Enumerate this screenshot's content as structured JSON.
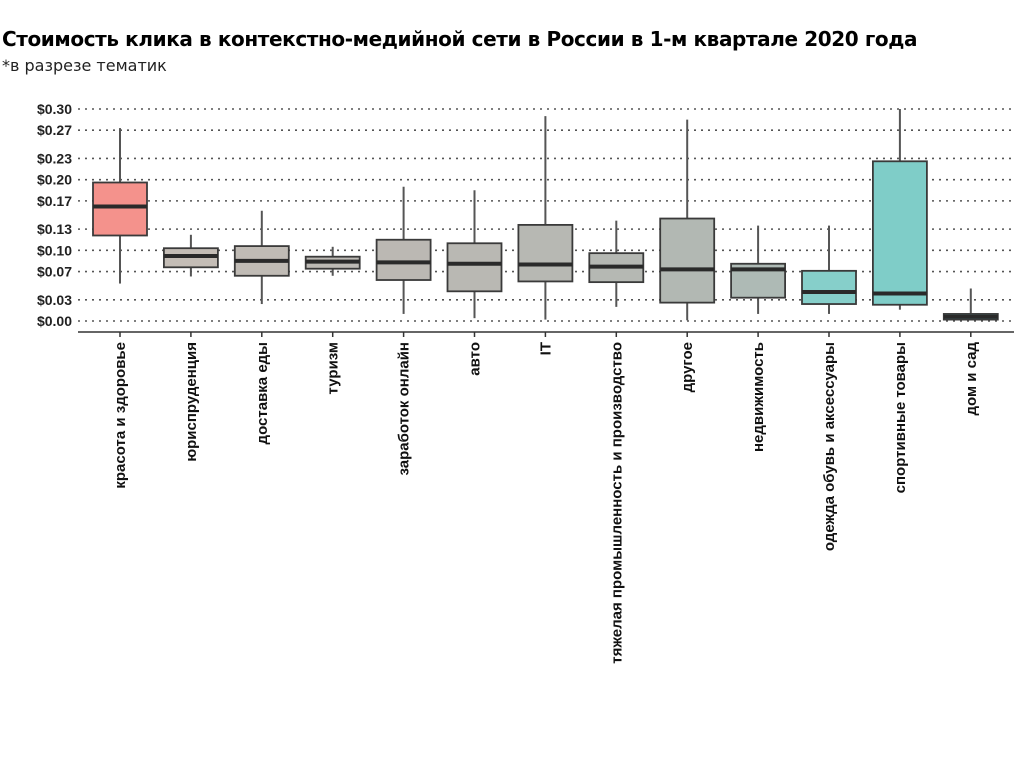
{
  "header": {
    "title": "Стоимость клика в контекстно-медийной сети в России в 1-м квартале 2020 года",
    "subtitle": "*в разрезе тематик"
  },
  "chart_data": {
    "type": "boxplot",
    "title": "Стоимость клика в контекстно-медийной сети в России в 1-м квартале 2020 года",
    "subtitle": "*в разрезе тематик",
    "xlabel": "",
    "ylabel": "",
    "ylim": [
      0,
      0.3
    ],
    "yticks": [
      0.0,
      0.03,
      0.07,
      0.1,
      0.13,
      0.17,
      0.2,
      0.23,
      0.27,
      0.3
    ],
    "ytick_labels": [
      "$0.00",
      "$0.03",
      "$0.07",
      "$0.10",
      "$0.13",
      "$0.17",
      "$0.20",
      "$0.23",
      "$0.27",
      "$0.30"
    ],
    "grid": "horizontal-dotted",
    "categories": [
      "красота и здоровье",
      "юриспруденция",
      "доставка еды",
      "туризм",
      "заработок онлайн",
      "авто",
      "IT",
      "тяжелая промышленность и производство",
      "другое",
      "недвижимость",
      "одежда обувь и аксессуары",
      "спортивные товары",
      "дом и сад"
    ],
    "boxes": [
      {
        "category": "красота и здоровье",
        "min": 0.053,
        "q1": 0.121,
        "median": 0.162,
        "q3": 0.196,
        "max": 0.273,
        "color": "#f4928c"
      },
      {
        "category": "юриспруденция",
        "min": 0.063,
        "q1": 0.076,
        "median": 0.092,
        "q3": 0.103,
        "max": 0.122,
        "color": "#c4bdb6"
      },
      {
        "category": "доставка еды",
        "min": 0.024,
        "q1": 0.064,
        "median": 0.085,
        "q3": 0.106,
        "max": 0.156,
        "color": "#c0bbb5"
      },
      {
        "category": "туризм",
        "min": 0.064,
        "q1": 0.074,
        "median": 0.084,
        "q3": 0.091,
        "max": 0.105,
        "color": "#bdbab5"
      },
      {
        "category": "заработок онлайн",
        "min": 0.01,
        "q1": 0.058,
        "median": 0.083,
        "q3": 0.115,
        "max": 0.19,
        "color": "#bbb8b3"
      },
      {
        "category": "авто",
        "min": 0.004,
        "q1": 0.042,
        "median": 0.081,
        "q3": 0.11,
        "max": 0.185,
        "color": "#b9b8b3"
      },
      {
        "category": "IT",
        "min": 0.002,
        "q1": 0.056,
        "median": 0.08,
        "q3": 0.136,
        "max": 0.29,
        "color": "#b7b8b3"
      },
      {
        "category": "тяжелая промышленность и производство",
        "min": 0.02,
        "q1": 0.055,
        "median": 0.077,
        "q3": 0.096,
        "max": 0.142,
        "color": "#b5b8b3"
      },
      {
        "category": "другое",
        "min": 0.001,
        "q1": 0.026,
        "median": 0.073,
        "q3": 0.145,
        "max": 0.285,
        "color": "#b2b8b3"
      },
      {
        "category": "недвижимость",
        "min": 0.01,
        "q1": 0.033,
        "median": 0.073,
        "q3": 0.081,
        "max": 0.135,
        "color": "#aebab5"
      },
      {
        "category": "одежда обувь и аксессуары",
        "min": 0.01,
        "q1": 0.024,
        "median": 0.041,
        "q3": 0.071,
        "max": 0.135,
        "color": "#86cfca"
      },
      {
        "category": "спортивные товары",
        "min": 0.016,
        "q1": 0.023,
        "median": 0.039,
        "q3": 0.226,
        "max": 0.3,
        "color": "#7fcdc8"
      },
      {
        "category": "дом и сад",
        "min": 0.001,
        "q1": 0.002,
        "median": 0.006,
        "q3": 0.01,
        "max": 0.046,
        "color": "#4bb3b8"
      }
    ]
  }
}
